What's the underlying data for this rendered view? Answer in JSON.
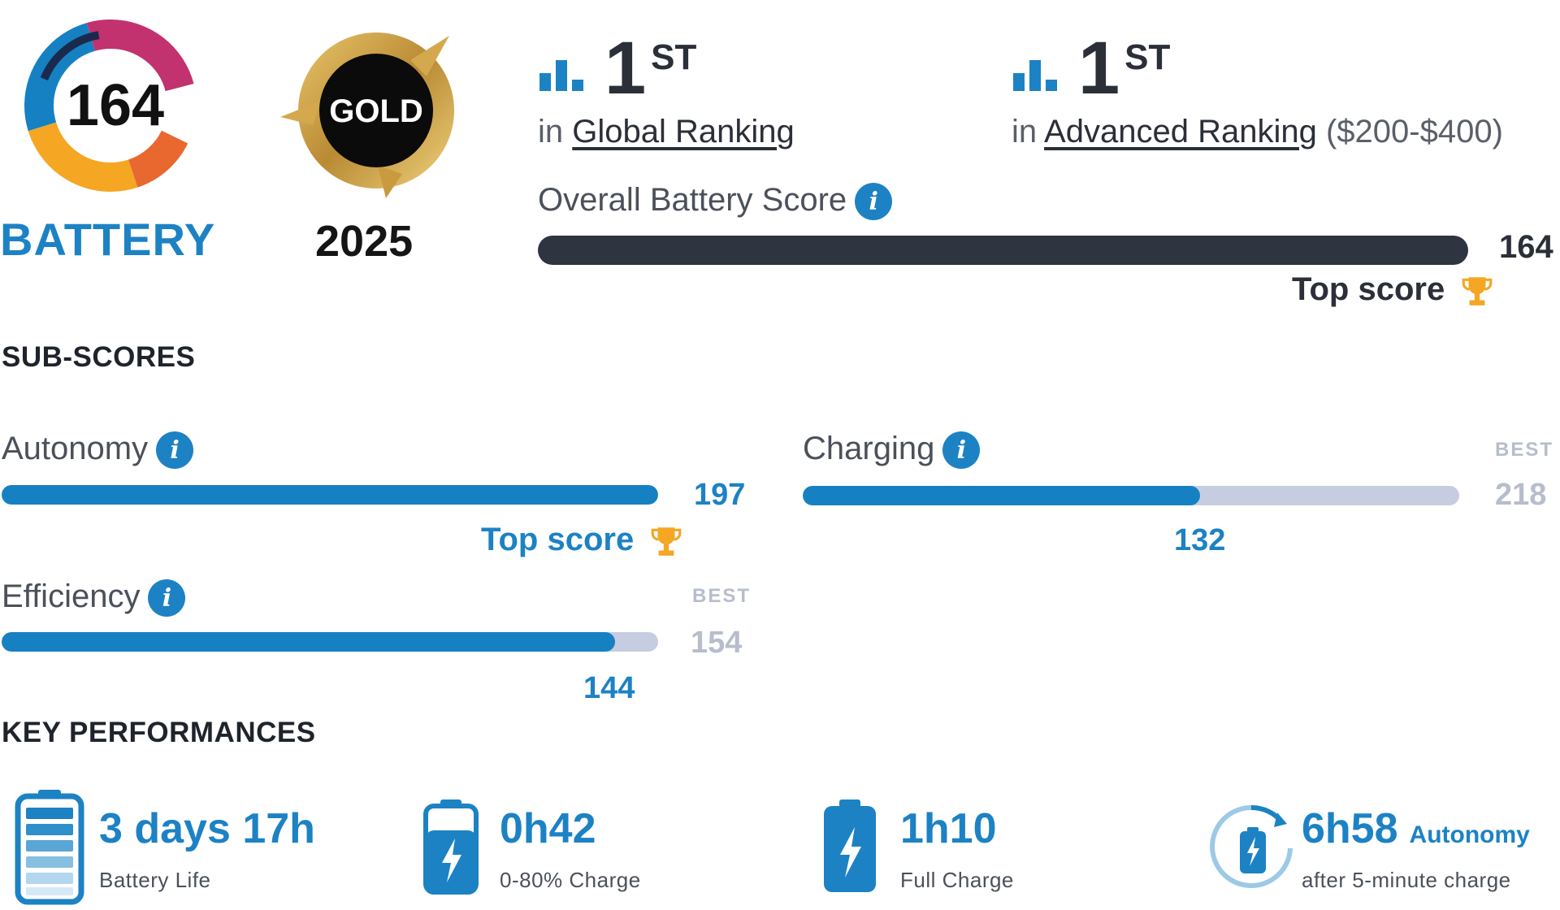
{
  "badges": {
    "battery_score": "164",
    "battery_word": "BATTERY",
    "gold_label": "GOLD",
    "gold_year": "2025"
  },
  "rankings": [
    {
      "position": "1",
      "suffix": "ST",
      "prefix": "in",
      "name": "Global Ranking",
      "extra": ""
    },
    {
      "position": "1",
      "suffix": "ST",
      "prefix": "in",
      "name": "Advanced Ranking",
      "extra": "($200-$400)"
    }
  ],
  "overall": {
    "label": "Overall Battery Score",
    "value": "164",
    "top_label": "Top score",
    "fill_fraction": 1.0
  },
  "subscores": {
    "title": "SUB-SCORES",
    "autonomy": {
      "label": "Autonomy",
      "value": "197",
      "top_label": "Top score",
      "fill_fraction": 1.0
    },
    "charging": {
      "label": "Charging",
      "value": "132",
      "best_label": "BEST",
      "best_value": "218",
      "fill_fraction": 0.6055
    },
    "efficiency": {
      "label": "Efficiency",
      "value": "144",
      "best_label": "BEST",
      "best_value": "154",
      "fill_fraction": 0.935
    }
  },
  "key_performances": {
    "title": "KEY PERFORMANCES",
    "items": [
      {
        "value": "3 days 17h",
        "label": "Battery Life",
        "icon": "battery-full-icon"
      },
      {
        "value": "0h42",
        "label": "0-80% Charge",
        "icon": "battery-charging-icon"
      },
      {
        "value": "1h10",
        "label": "Full Charge",
        "icon": "battery-charging-icon"
      },
      {
        "value": "6h58",
        "unit": "Autonomy",
        "label": "after 5-minute charge",
        "icon": "quick-charge-cycle-icon"
      }
    ]
  },
  "colors": {
    "accent": "#1c82c4",
    "dark_bar": "#2e3440",
    "track": "#c7cde0",
    "muted": "#b8bdcd",
    "gold": "#c9a045"
  }
}
